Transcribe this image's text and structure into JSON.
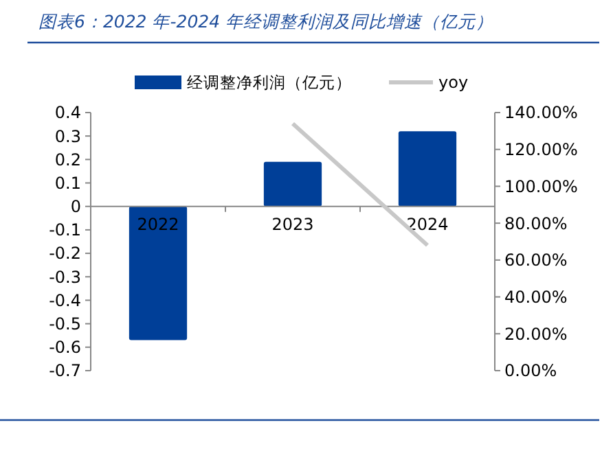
{
  "chart_data": {
    "type": "bar",
    "title": "图表6：2022 年-2024 年经调整利润及同比增速（亿元）",
    "categories": [
      "2022",
      "2023",
      "2024"
    ],
    "series": [
      {
        "name": "经调整净利润（亿元）",
        "color": "#003f98",
        "values": [
          -0.57,
          0.19,
          0.32
        ]
      },
      {
        "name": "yoy",
        "type": "line",
        "axis": "y2",
        "color": "#c8c8c8",
        "values": [
          null,
          134,
          68
        ]
      }
    ],
    "ylim": [
      -0.7,
      0.4
    ],
    "yticks": [
      -0.7,
      -0.6,
      -0.5,
      -0.4,
      -0.3,
      -0.2,
      -0.1,
      0,
      0.1,
      0.2,
      0.3,
      0.4
    ],
    "y2lim": [
      0,
      140
    ],
    "y2ticks": [
      {
        "value": 0,
        "label": "0.00%"
      },
      {
        "value": 20,
        "label": "20.00%"
      },
      {
        "value": 40,
        "label": "40.00%"
      },
      {
        "value": 60,
        "label": "60.00%"
      },
      {
        "value": 80,
        "label": "80.00%"
      },
      {
        "value": 100,
        "label": "100.00%"
      },
      {
        "value": 120,
        "label": "120.00%"
      },
      {
        "value": 140,
        "label": "140.00%"
      }
    ],
    "legend": "top",
    "grid": false
  }
}
